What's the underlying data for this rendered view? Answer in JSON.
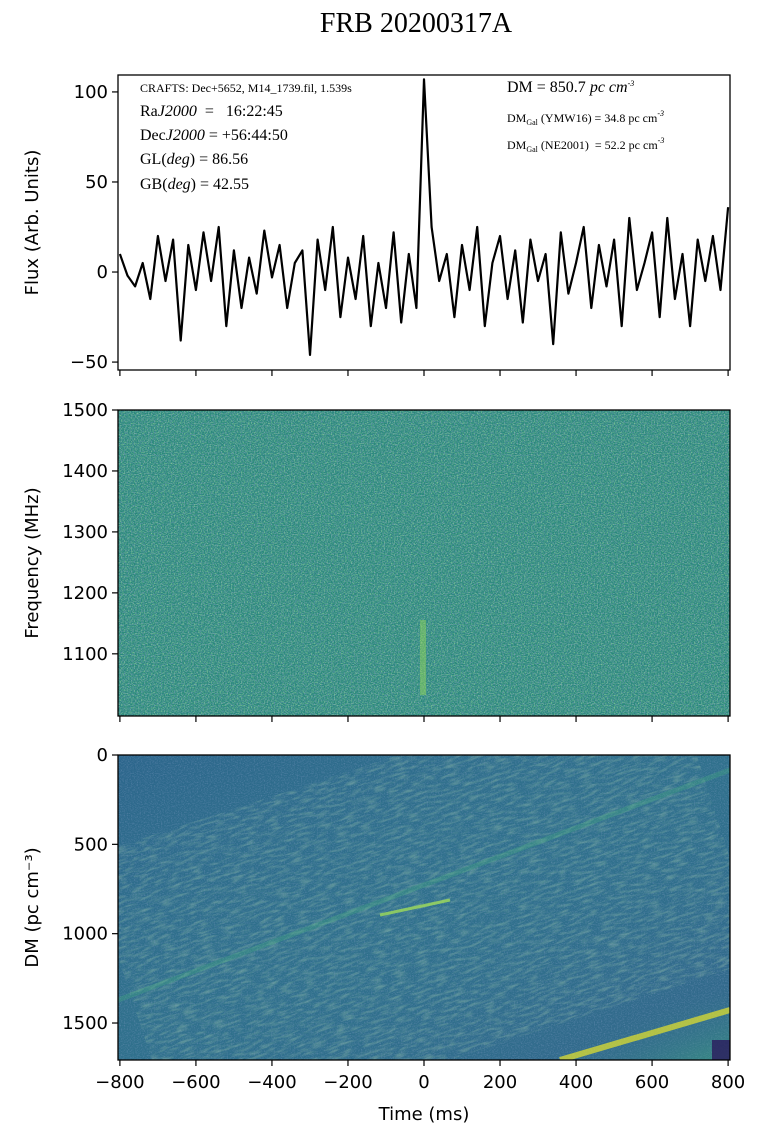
{
  "title": "FRB 20200317A",
  "chart_data": [
    {
      "type": "line",
      "ylabel": "Flux (Arb. Units)",
      "x": [
        -800,
        -780,
        -760,
        -740,
        -720,
        -700,
        -680,
        -660,
        -640,
        -620,
        -600,
        -580,
        -560,
        -540,
        -520,
        -500,
        -480,
        -460,
        -440,
        -420,
        -400,
        -380,
        -360,
        -340,
        -320,
        -300,
        -280,
        -260,
        -240,
        -220,
        -200,
        -180,
        -160,
        -140,
        -120,
        -100,
        -80,
        -60,
        -40,
        -20,
        0,
        20,
        40,
        60,
        80,
        100,
        120,
        140,
        160,
        180,
        200,
        220,
        240,
        260,
        280,
        300,
        320,
        340,
        360,
        380,
        400,
        420,
        440,
        460,
        480,
        500,
        520,
        540,
        560,
        580,
        600,
        620,
        640,
        660,
        680,
        700,
        720,
        740,
        760,
        780,
        800
      ],
      "series": [
        {
          "color": "#000000",
          "values": [
            10,
            -2,
            -8,
            5,
            -15,
            20,
            -5,
            18,
            -38,
            15,
            -10,
            22,
            -5,
            25,
            -30,
            12,
            -20,
            8,
            -12,
            23,
            -3,
            15,
            -20,
            5,
            12,
            -46,
            18,
            -10,
            25,
            -25,
            8,
            -15,
            20,
            -30,
            5,
            -20,
            22,
            -28,
            10,
            -20,
            107,
            25,
            -5,
            10,
            -25,
            15,
            -10,
            25,
            -30,
            5,
            20,
            -15,
            12,
            -28,
            18,
            -5,
            10,
            -40,
            22,
            -12,
            5,
            25,
            -20,
            15,
            -8,
            18,
            -30,
            30,
            -10,
            5,
            22,
            -25,
            30,
            -15,
            10,
            -30,
            18,
            -5,
            20,
            -10,
            36
          ]
        }
      ],
      "xlim": [
        -805,
        805
      ],
      "xticks": [
        {
          "value": -800,
          "label": "−800"
        },
        {
          "value": -600,
          "label": "−600"
        },
        {
          "value": -400,
          "label": "−400"
        },
        {
          "value": -200,
          "label": "−200"
        },
        0,
        200,
        400,
        600,
        800
      ],
      "ylim": [
        -54.4,
        109.4
      ],
      "yticks": [
        {
          "value": -50,
          "label": "−50"
        },
        0,
        50,
        100
      ],
      "annotations": [
        [
          {
            "text": "CRAFTS: Dec+5652, M14_1739.fil, 1.539s",
            "style": "small"
          }
        ],
        [
          {
            "text": "Ra"
          },
          {
            "text": "J2000",
            "style": "italic"
          },
          {
            "text": "  =   16:22:45"
          }
        ],
        [
          {
            "text": "Dec"
          },
          {
            "text": "J2000",
            "style": "italic"
          },
          {
            "text": " = +56:44:50"
          }
        ],
        [
          {
            "text": "GL("
          },
          {
            "text": "deg",
            "style": "italic"
          },
          {
            "text": ") = 86.56"
          }
        ],
        [
          {
            "text": "GB("
          },
          {
            "text": "deg",
            "style": "italic"
          },
          {
            "text": ") = 42.55"
          }
        ],
        [
          {
            "text": "DM = 850.7 "
          },
          {
            "text": "pc cm",
            "style": "italic"
          },
          {
            "text": "-3",
            "style": "sup"
          }
        ],
        [
          {
            "text": "DM",
            "style": "small"
          },
          {
            "text": "Gal",
            "style": "sub"
          },
          {
            "text": " (YMW16) = 34.8 pc cm",
            "style": "small"
          },
          {
            "text": "-3",
            "style": "sup"
          }
        ],
        [
          {
            "text": "DM",
            "style": "small"
          },
          {
            "text": "Gal",
            "style": "sub"
          },
          {
            "text": " (NE2001)  = 52.2 pc cm",
            "style": "small"
          },
          {
            "text": "-3",
            "style": "sup"
          }
        ]
      ]
    },
    {
      "type": "heatmap",
      "ylabel": "Frequency (MHz)",
      "color": "#29887c",
      "xlim": [
        -805,
        805
      ],
      "xticks": [
        {
          "value": -800,
          "label": "−800"
        },
        {
          "value": -600,
          "label": "−600"
        },
        {
          "value": -400,
          "label": "−400"
        },
        {
          "value": -200,
          "label": "−200"
        },
        0,
        200,
        400,
        600,
        800
      ],
      "ylim": [
        998,
        1500
      ],
      "yticks": [
        1100,
        1200,
        1300,
        1400,
        1500
      ]
    },
    {
      "type": "heatmap",
      "ylabel": "DM (pc cm⁻³)",
      "xlabel": "Time (ms)",
      "color": "#2f708c",
      "xlim": [
        -805,
        805
      ],
      "xticks": [
        {
          "value": -800,
          "label": "−800"
        },
        {
          "value": -600,
          "label": "−600"
        },
        {
          "value": -400,
          "label": "−400"
        },
        {
          "value": -200,
          "label": "−200"
        },
        0,
        200,
        400,
        600,
        800
      ],
      "ylim": [
        1707,
        0
      ],
      "yticks": [
        0,
        500,
        1000,
        1500
      ]
    }
  ]
}
